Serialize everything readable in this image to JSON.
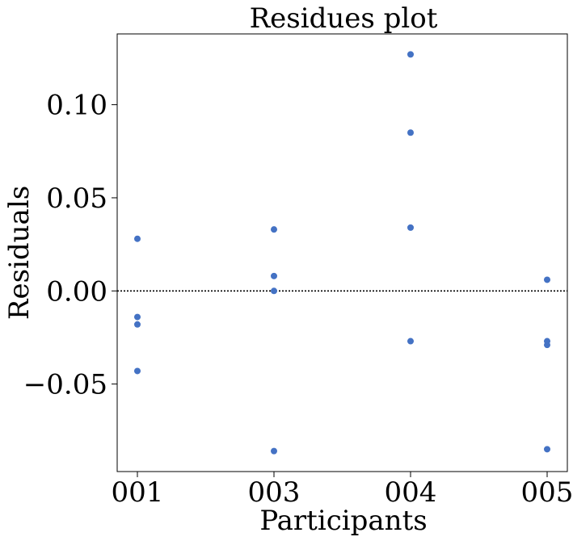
{
  "chart_data": {
    "type": "scatter",
    "title": "Residues plot",
    "xlabel": "Participants",
    "ylabel": "Residuals",
    "categories": [
      "001",
      "003",
      "004",
      "005"
    ],
    "ylim": [
      -0.097,
      0.138
    ],
    "yticks": [
      0.1,
      0.05,
      0.0,
      -0.05
    ],
    "ytick_labels": [
      "0.10",
      "0.05",
      "0.00",
      "−0.05"
    ],
    "reference_line": 0.0,
    "grid": false,
    "point_color": "#4472c4",
    "points": [
      {
        "category": "001",
        "value": 0.028
      },
      {
        "category": "001",
        "value": -0.014
      },
      {
        "category": "001",
        "value": -0.018
      },
      {
        "category": "001",
        "value": -0.043
      },
      {
        "category": "003",
        "value": 0.033
      },
      {
        "category": "003",
        "value": 0.008
      },
      {
        "category": "003",
        "value": 0.0
      },
      {
        "category": "003",
        "value": -0.086
      },
      {
        "category": "004",
        "value": 0.127
      },
      {
        "category": "004",
        "value": 0.085
      },
      {
        "category": "004",
        "value": 0.034
      },
      {
        "category": "004",
        "value": -0.027
      },
      {
        "category": "005",
        "value": 0.006
      },
      {
        "category": "005",
        "value": -0.027
      },
      {
        "category": "005",
        "value": -0.029
      },
      {
        "category": "005",
        "value": -0.085
      }
    ]
  }
}
